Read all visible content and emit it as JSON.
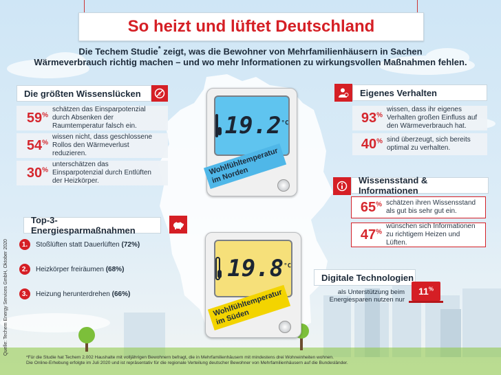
{
  "title": "So heizt und lüftet Deutschland",
  "intro": {
    "line1_a": "Die Techem Studie",
    "line1_star": "*",
    "line1_b": " zeigt, was die Bewohner von Mehrfamilienhäusern in Sachen",
    "line2": "Wärmeverbrauch richtig machen – und wo mehr Informationen zu wirkungsvollen Maßnahmen fehlen."
  },
  "knowledge_gaps": {
    "title": "Die größten Wissenslücken",
    "items": [
      {
        "value": "59",
        "unit": "%",
        "text": "schätzen das Einsparpotenzial durch Absenken der Raumtemperatur falsch ein."
      },
      {
        "value": "54",
        "unit": "%",
        "text": "wissen nicht, dass geschlossene Rollos den Wärmeverlust reduzieren."
      },
      {
        "value": "30",
        "unit": "%",
        "text": "unterschätzen das Einsparpotenzial durch Entlüften der Heizkörper."
      }
    ]
  },
  "top3": {
    "title": "Top-3-Energiesparmaßnahmen",
    "items": [
      {
        "num": "1.",
        "text": "Stoßlüften statt Dauerlüften ",
        "value": "(72%)"
      },
      {
        "num": "2.",
        "text": "Heizkörper freiräumen ",
        "value": "(68%)"
      },
      {
        "num": "3.",
        "text": "Heizung herunterdrehen ",
        "value": "(66%)"
      }
    ]
  },
  "own_behaviour": {
    "title": "Eigenes Verhalten",
    "items": [
      {
        "value": "93",
        "unit": "%",
        "text": "wissen, dass ihr eigenes Verhalten großen Einfluss auf den Wärmeverbrauch hat."
      },
      {
        "value": "40",
        "unit": "%",
        "text": "sind überzeugt, sich bereits optimal zu verhalten."
      }
    ]
  },
  "knowledge_info": {
    "title": "Wissensstand & Informationen",
    "items": [
      {
        "value": "65",
        "unit": "%",
        "text": "schätzen ihren Wissensstand als gut bis sehr gut ein."
      },
      {
        "value": "47",
        "unit": "%",
        "text": "wünschen sich Informationen zu richtigem Heizen und Lüften."
      }
    ]
  },
  "digital": {
    "title": "Digitale Technologien",
    "text": "als Unterstützung beim Energiesparen nutzen nur",
    "value": "11",
    "unit": "%"
  },
  "thermostat_north": {
    "temp": "19.2",
    "unit": "°C",
    "label_line1": "Wohlfühltemperatur",
    "label_line2": "im Norden"
  },
  "thermostat_south": {
    "temp": "19.8",
    "unit": "°C",
    "label_line1": "Wohlfühltemperatur",
    "label_line2": "im Süden"
  },
  "source": "Quelle: Techem Energy Services GmbH, Oktober 2020",
  "footnote_line1": "*Für die Studie hat Techem 2.002 Haushalte mit volljährigen Bewohnern befragt, die in Mehrfamilienhäusern mit mindestens drei Wohneinheiten wohnen.",
  "footnote_line2": "Die Online-Erhebung erfolgte im Juli 2020 und ist repräsentativ für die regionale Verteilung deutscher Bewohner von Mehrfamilienhäusern auf die Bundesländer.",
  "colors": {
    "accent": "#d51f25",
    "text": "#1d2b3a",
    "lcd_blue": "#5fc4ef",
    "lcd_yellow": "#f6e07a",
    "tag_blue": "#4fb7e8",
    "tag_yellow": "#f3d400"
  }
}
